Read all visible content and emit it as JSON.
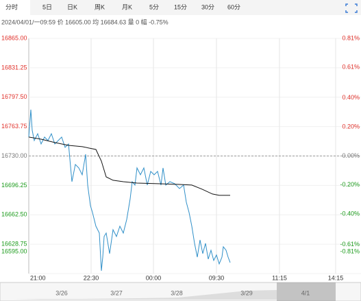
{
  "tabs": [
    "分时",
    "5日",
    "日K",
    "周K",
    "月K",
    "5分",
    "15分",
    "30分",
    "60分"
  ],
  "info": "2024/04/01/一09:59  价 16605.00  均 16684.63  量 0  幅 -0.75%",
  "navigator": [
    "3/26",
    "3/27",
    "3/28",
    "3/29",
    "4/1"
  ],
  "chart_data": {
    "type": "line",
    "reference": 16730,
    "ylim": [
      16595,
      16865
    ],
    "yticks": [
      {
        "value": 16865,
        "label": "16865.00"
      },
      {
        "value": 16831.25,
        "label": "16831.25"
      },
      {
        "value": 16797.5,
        "label": "16797.50"
      },
      {
        "value": 16763.75,
        "label": "16763.75"
      },
      {
        "value": 16730,
        "label": "16730.00"
      },
      {
        "value": 16696.25,
        "label": "16696.25"
      },
      {
        "value": 16662.5,
        "label": "16662.50"
      },
      {
        "value": 16628.75,
        "label": "16628.75"
      },
      {
        "value": 16595,
        "label": "16595.00"
      }
    ],
    "y2lim": [
      -0.81,
      0.81
    ],
    "y2ticks": [
      {
        "value": 0.81,
        "label": "0.81%"
      },
      {
        "value": 0.61,
        "label": "0.61%"
      },
      {
        "value": 0.4,
        "label": "0.40%"
      },
      {
        "value": 0.2,
        "label": "0.20%"
      },
      {
        "value": 0,
        "label": "0.00%"
      },
      {
        "value": -0.2,
        "label": "-0.20%"
      },
      {
        "value": -0.4,
        "label": "-0.40%"
      },
      {
        "value": -0.61,
        "label": "-0.61%"
      },
      {
        "value": -0.81,
        "label": "-0.81%"
      }
    ],
    "xlim": [
      0,
      485
    ],
    "xticks": [
      {
        "value": 0,
        "label": "21:00"
      },
      {
        "value": 91,
        "label": "22:30"
      },
      {
        "value": 182,
        "label": "00:00"
      },
      {
        "value": 274,
        "label": "09:30"
      },
      {
        "value": 366,
        "label": "11:15"
      },
      {
        "value": 448,
        "label": "14:15"
      }
    ],
    "series": [
      {
        "color": "#2f8fc8",
        "x": [
          0,
          3,
          5,
          8,
          13,
          18,
          23,
          28,
          33,
          38,
          43,
          48,
          53,
          58,
          63,
          68,
          73,
          78,
          83,
          86,
          90,
          93,
          98,
          103,
          106,
          108,
          110,
          113,
          118,
          123,
          128,
          133,
          138,
          143,
          148,
          151,
          155,
          158,
          163,
          168,
          173,
          178,
          183,
          188,
          193,
          196,
          200,
          206,
          213,
          220,
          226,
          230,
          234,
          238,
          242,
          246,
          250,
          254,
          258,
          262,
          266,
          270,
          274,
          278,
          282,
          284,
          288,
          291,
          294
        ],
        "values": [
          16751.7,
          16783.2,
          16759.5,
          16747.7,
          16755.6,
          16743.8,
          16751.7,
          16747.7,
          16755.6,
          16743.8,
          16747.7,
          16751.7,
          16739.9,
          16743.8,
          16700.5,
          16720.2,
          16716.3,
          16708.4,
          16732.0,
          16696.6,
          16673.0,
          16665.1,
          16649.4,
          16641.5,
          16598.2,
          16613.9,
          16637.6,
          16641.5,
          16617.9,
          16645.4,
          16637.6,
          16649.4,
          16641.5,
          16657.2,
          16680.8,
          16700.5,
          16696.6,
          16716.3,
          16708.4,
          16716.3,
          16696.6,
          16712.3,
          16708.4,
          16712.3,
          16696.6,
          16716.3,
          16696.6,
          16700.5,
          16698.2,
          16692.6,
          16696.6,
          16676.9,
          16665.1,
          16649.4,
          16629.7,
          16613.9,
          16633.6,
          16617.9,
          16629.7,
          16611.6,
          16621.8,
          16610.0,
          16616.3,
          16606.1,
          16613.9,
          16625.8,
          16621.8,
          16613.9,
          16607.7
        ]
      },
      {
        "color": "#111111",
        "x": [
          0,
          18,
          38,
          58,
          78,
          98,
          106,
          113,
          123,
          138,
          158,
          188,
          218,
          238,
          253,
          268,
          278,
          294
        ],
        "values": [
          16751.7,
          16749.3,
          16745.4,
          16742.2,
          16740.7,
          16737.5,
          16724.1,
          16706.0,
          16702.1,
          16700.5,
          16698.9,
          16698.2,
          16697.4,
          16696.6,
          16691.9,
          16686.4,
          16684.8,
          16684.8
        ]
      }
    ]
  }
}
